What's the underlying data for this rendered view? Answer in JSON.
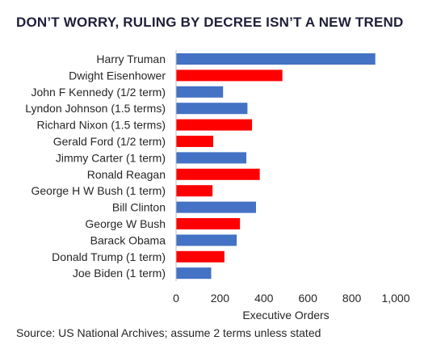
{
  "title": "DON’T WORRY, RULING BY DECREE ISN’T A NEW TREND",
  "source": "Source: US National Archives; assume 2 terms unless stated",
  "colors": {
    "blue": "#4472c4",
    "red": "#ff0000"
  },
  "chart_data": {
    "type": "bar",
    "orientation": "horizontal",
    "categories": [
      "Harry Truman",
      "Dwight Eisenhower",
      "John F Kennedy (1/2 term)",
      "Lyndon Johnson (1.5 terms)",
      "Richard Nixon (1.5 terms)",
      "Gerald Ford (1/2 term)",
      "Jimmy Carter (1 term)",
      "Ronald Reagan",
      "George H W Bush (1 term)",
      "Bill Clinton",
      "George W Bush",
      "Barack Obama",
      "Donald Trump (1 term)",
      "Joe Biden (1 term)"
    ],
    "values": [
      907,
      484,
      214,
      325,
      346,
      169,
      320,
      381,
      166,
      364,
      291,
      276,
      220,
      160
    ],
    "bar_colors": [
      "blue",
      "red",
      "blue",
      "blue",
      "red",
      "red",
      "blue",
      "red",
      "red",
      "blue",
      "red",
      "blue",
      "red",
      "blue"
    ],
    "xlabel": "Executive Orders",
    "ylabel": "",
    "xlim": [
      0,
      1000
    ],
    "xticks": [
      0,
      200,
      400,
      600,
      800,
      1000
    ],
    "xtick_labels": [
      "0",
      "200",
      "400",
      "600",
      "800",
      "1,000"
    ],
    "grid": false,
    "legend": "none"
  }
}
